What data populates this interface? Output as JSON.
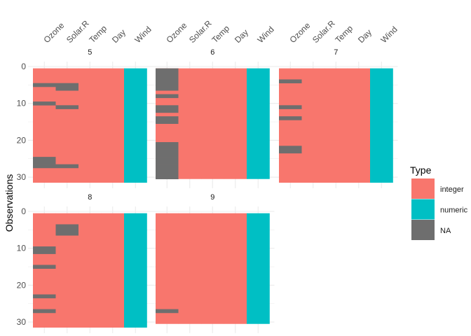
{
  "chart_data": {
    "type": "heatmap",
    "title": "",
    "ylabel": "Observations",
    "xlabel": "",
    "columns": [
      "Ozone",
      "Solar.R",
      "Temp",
      "Day",
      "Wind"
    ],
    "column_types": [
      "integer",
      "integer",
      "integer",
      "integer",
      "numeric"
    ],
    "y_ticks": [
      0,
      10,
      20,
      30
    ],
    "grid": true,
    "legend": {
      "title": "Type",
      "position": "right",
      "entries": [
        "integer",
        "numeric",
        "NA"
      ]
    },
    "colors": {
      "integer": "#F8766D",
      "numeric": "#00BFC4",
      "NA": "#6E6E6E"
    },
    "panels": [
      {
        "label": "5",
        "rows": 31,
        "na": {
          "Ozone": [
            5,
            10,
            25,
            26,
            27
          ],
          "Solar.R": [
            5,
            6,
            11,
            27
          ]
        }
      },
      {
        "label": "6",
        "rows": 30,
        "na": {
          "Ozone": [
            1,
            2,
            3,
            4,
            5,
            6,
            8,
            11,
            12,
            14,
            15,
            21,
            22,
            23,
            24,
            25,
            26,
            27,
            28,
            29,
            30
          ],
          "Solar.R": []
        }
      },
      {
        "label": "7",
        "rows": 31,
        "na": {
          "Ozone": [
            4,
            11,
            14,
            22,
            23
          ],
          "Solar.R": []
        }
      },
      {
        "label": "8",
        "rows": 31,
        "na": {
          "Ozone": [
            10,
            11,
            15,
            23,
            27
          ],
          "Solar.R": [
            4,
            5,
            6
          ]
        }
      },
      {
        "label": "9",
        "rows": 30,
        "na": {
          "Ozone": [
            27
          ],
          "Solar.R": []
        }
      }
    ]
  }
}
